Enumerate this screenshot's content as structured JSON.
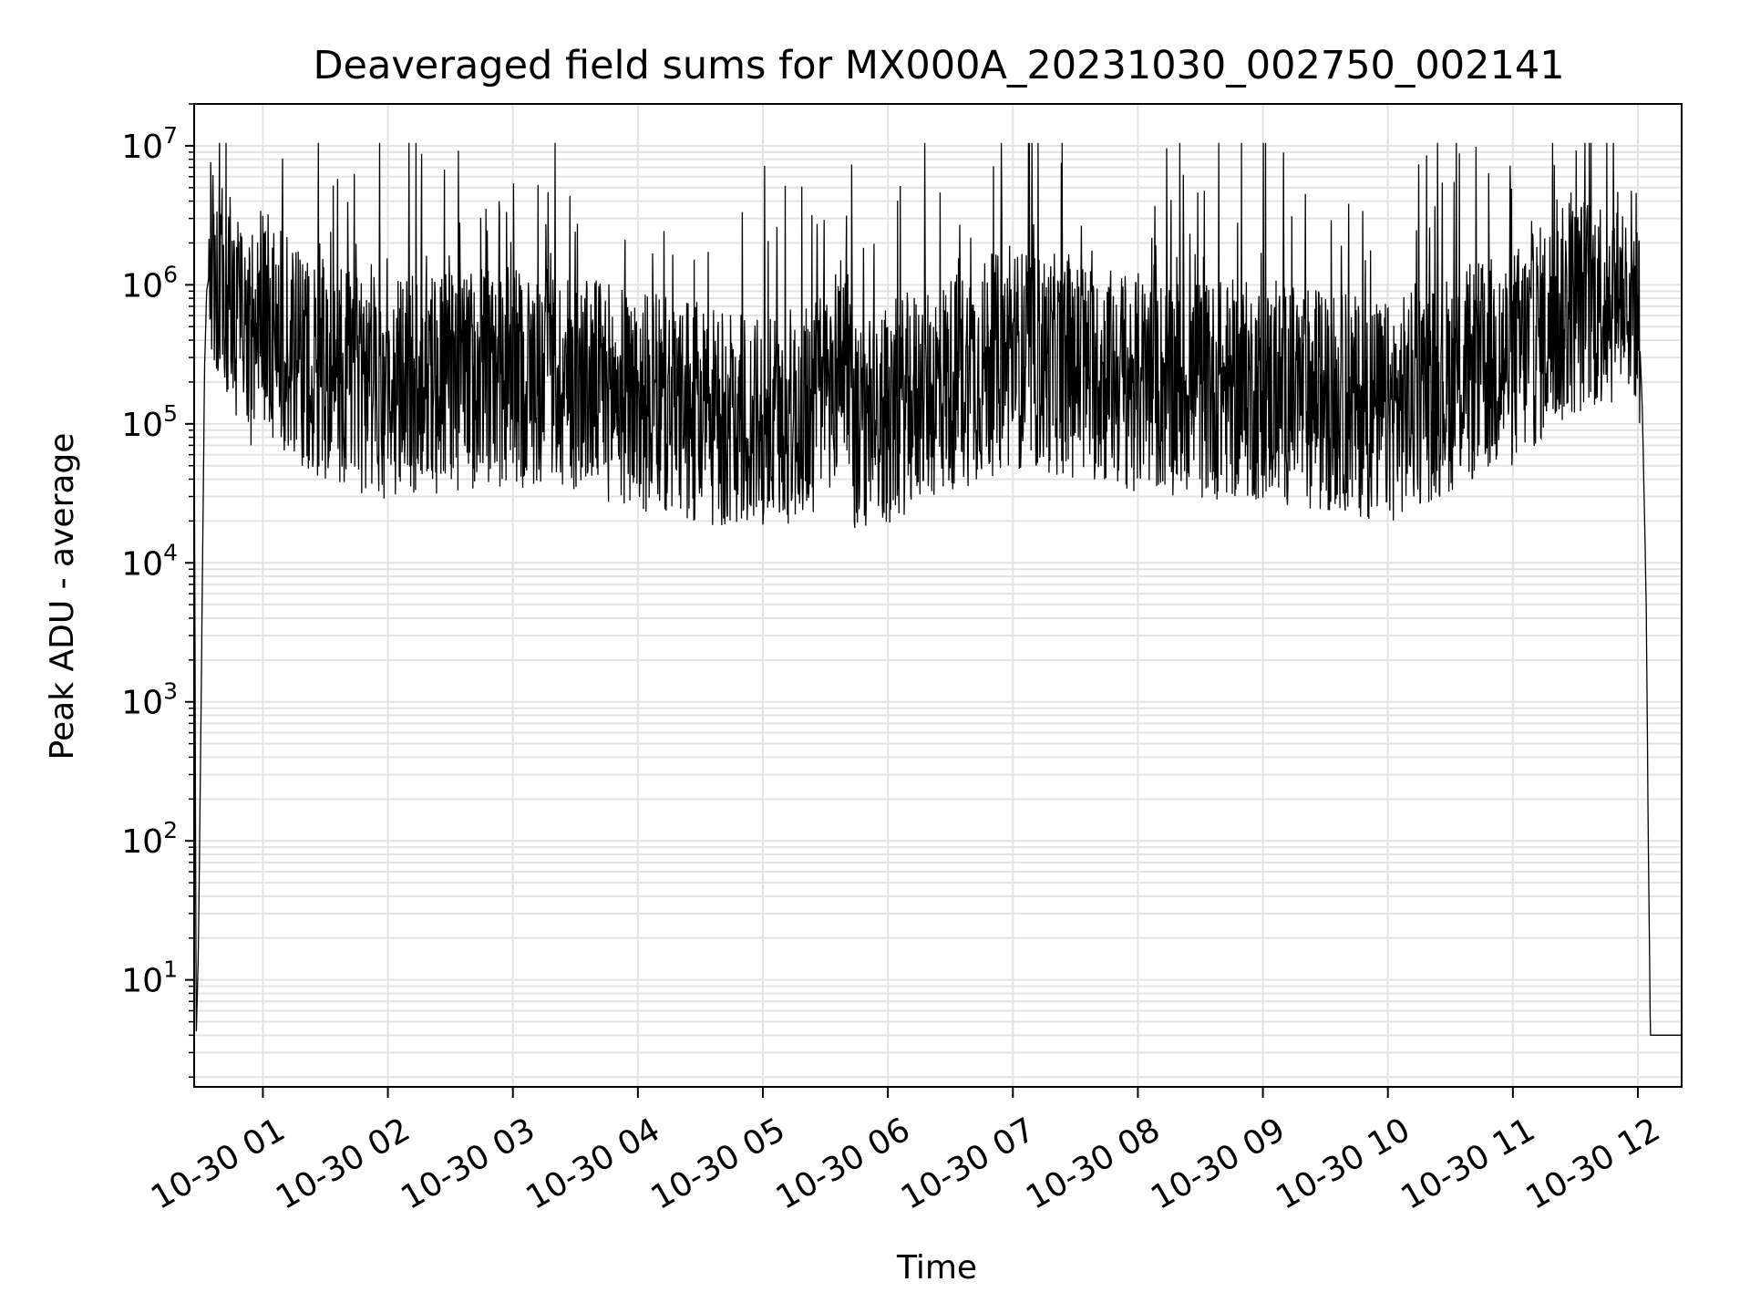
{
  "chart_data": {
    "type": "line",
    "title": "Deaveraged field sums for MX000A_20231030_002750_002141",
    "xlabel": "Time",
    "ylabel": "Peak ADU - average",
    "yscale": "log",
    "ylim": [
      1.7,
      20000000
    ],
    "xlim": [
      "2023-10-30 00:27",
      "2023-10-30 12:21"
    ],
    "grid": "on (major and minor)",
    "line_color": "#000000",
    "x_ticks": [
      "10-30 01",
      "10-30 02",
      "10-30 03",
      "10-30 04",
      "10-30 05",
      "10-30 06",
      "10-30 07",
      "10-30 08",
      "10-30 09",
      "10-30 10",
      "10-30 11",
      "10-30 12"
    ],
    "y_ticks": [
      {
        "base": "10",
        "exp": "1",
        "value": 10
      },
      {
        "base": "10",
        "exp": "2",
        "value": 100
      },
      {
        "base": "10",
        "exp": "3",
        "value": 1000
      },
      {
        "base": "10",
        "exp": "4",
        "value": 10000
      },
      {
        "base": "10",
        "exp": "5",
        "value": 100000
      },
      {
        "base": "10",
        "exp": "6",
        "value": 1000000
      },
      {
        "base": "10",
        "exp": "7",
        "value": 10000000
      }
    ],
    "series": [
      {
        "points": [
          [
            "2023-10-30 00:27",
            180000
          ],
          [
            "2023-10-30 00:28",
            4
          ],
          [
            "2023-10-30 00:29",
            15
          ],
          [
            "2023-10-30 00:30",
            300
          ],
          [
            "2023-10-30 00:32",
            250000
          ],
          [
            "2023-10-30 00:33",
            900000
          ],
          [
            "2023-10-30 00:35",
            1400000
          ],
          [
            "2023-10-30 00:40",
            1200000
          ],
          [
            "2023-10-30 00:45",
            800000
          ],
          [
            "2023-10-30 00:50",
            500000
          ],
          [
            "2023-10-30 00:55",
            400000
          ],
          [
            "2023-10-30 01:00",
            600000
          ],
          [
            "2023-10-30 01:15",
            300000
          ],
          [
            "2023-10-30 01:30",
            250000
          ],
          [
            "2023-10-30 01:45",
            200000
          ],
          [
            "2023-10-30 02:00",
            180000
          ],
          [
            "2023-10-30 02:30",
            200000
          ],
          [
            "2023-10-30 03:00",
            220000
          ],
          [
            "2023-10-30 03:30",
            200000
          ],
          [
            "2023-10-30 04:00",
            150000
          ],
          [
            "2023-10-30 04:30",
            110000
          ],
          [
            "2023-10-30 05:00",
            90000
          ],
          [
            "2023-10-30 05:30",
            150000
          ],
          [
            "2023-10-30 05:40",
            400000
          ],
          [
            "2023-10-30 05:45",
            80000
          ],
          [
            "2023-10-30 06:00",
            120000
          ],
          [
            "2023-10-30 06:30",
            200000
          ],
          [
            "2023-10-30 07:00",
            300000
          ],
          [
            "2023-10-30 07:30",
            250000
          ],
          [
            "2023-10-30 08:00",
            200000
          ],
          [
            "2023-10-30 08:30",
            180000
          ],
          [
            "2023-10-30 09:00",
            170000
          ],
          [
            "2023-10-30 09:30",
            150000
          ],
          [
            "2023-10-30 10:00",
            120000
          ],
          [
            "2023-10-30 10:30",
            200000
          ],
          [
            "2023-10-30 11:00",
            300000
          ],
          [
            "2023-10-30 11:30",
            700000
          ],
          [
            "2023-10-30 11:55",
            900000
          ],
          [
            "2023-10-30 12:00",
            800000
          ],
          [
            "2023-10-30 12:02",
            150000
          ],
          [
            "2023-10-30 12:03",
            30000
          ],
          [
            "2023-10-30 12:04",
            5000
          ],
          [
            "2023-10-30 12:05",
            100
          ],
          [
            "2023-10-30 12:06",
            4
          ],
          [
            "2023-10-30 12:21",
            4
          ]
        ]
      }
    ]
  }
}
